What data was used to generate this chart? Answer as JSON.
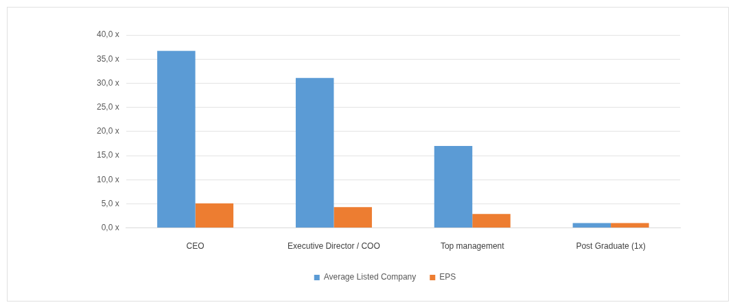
{
  "chart_data": {
    "type": "bar",
    "categories": [
      "CEO",
      "Executive Director / COO",
      "Top management",
      "Post Graduate (1x)"
    ],
    "series": [
      {
        "name": "Average Listed Company",
        "color": "#5b9bd5",
        "values": [
          36.7,
          31.1,
          17.0,
          1.0
        ]
      },
      {
        "name": "EPS",
        "color": "#ed7d31",
        "values": [
          5.1,
          4.3,
          2.9,
          1.0
        ]
      }
    ],
    "ylim": [
      0,
      40
    ],
    "yticks": [
      {
        "value": 0,
        "label": "0,0 x"
      },
      {
        "value": 5,
        "label": "5,0 x"
      },
      {
        "value": 10,
        "label": "10,0 x"
      },
      {
        "value": 15,
        "label": "15,0 x"
      },
      {
        "value": 20,
        "label": "20,0 x"
      },
      {
        "value": 25,
        "label": "25,0 x"
      },
      {
        "value": 30,
        "label": "30,0 x"
      },
      {
        "value": 35,
        "label": "35,0 x"
      },
      {
        "value": 40,
        "label": "40,0 x"
      }
    ],
    "grid": "y",
    "legend": "bottom"
  }
}
